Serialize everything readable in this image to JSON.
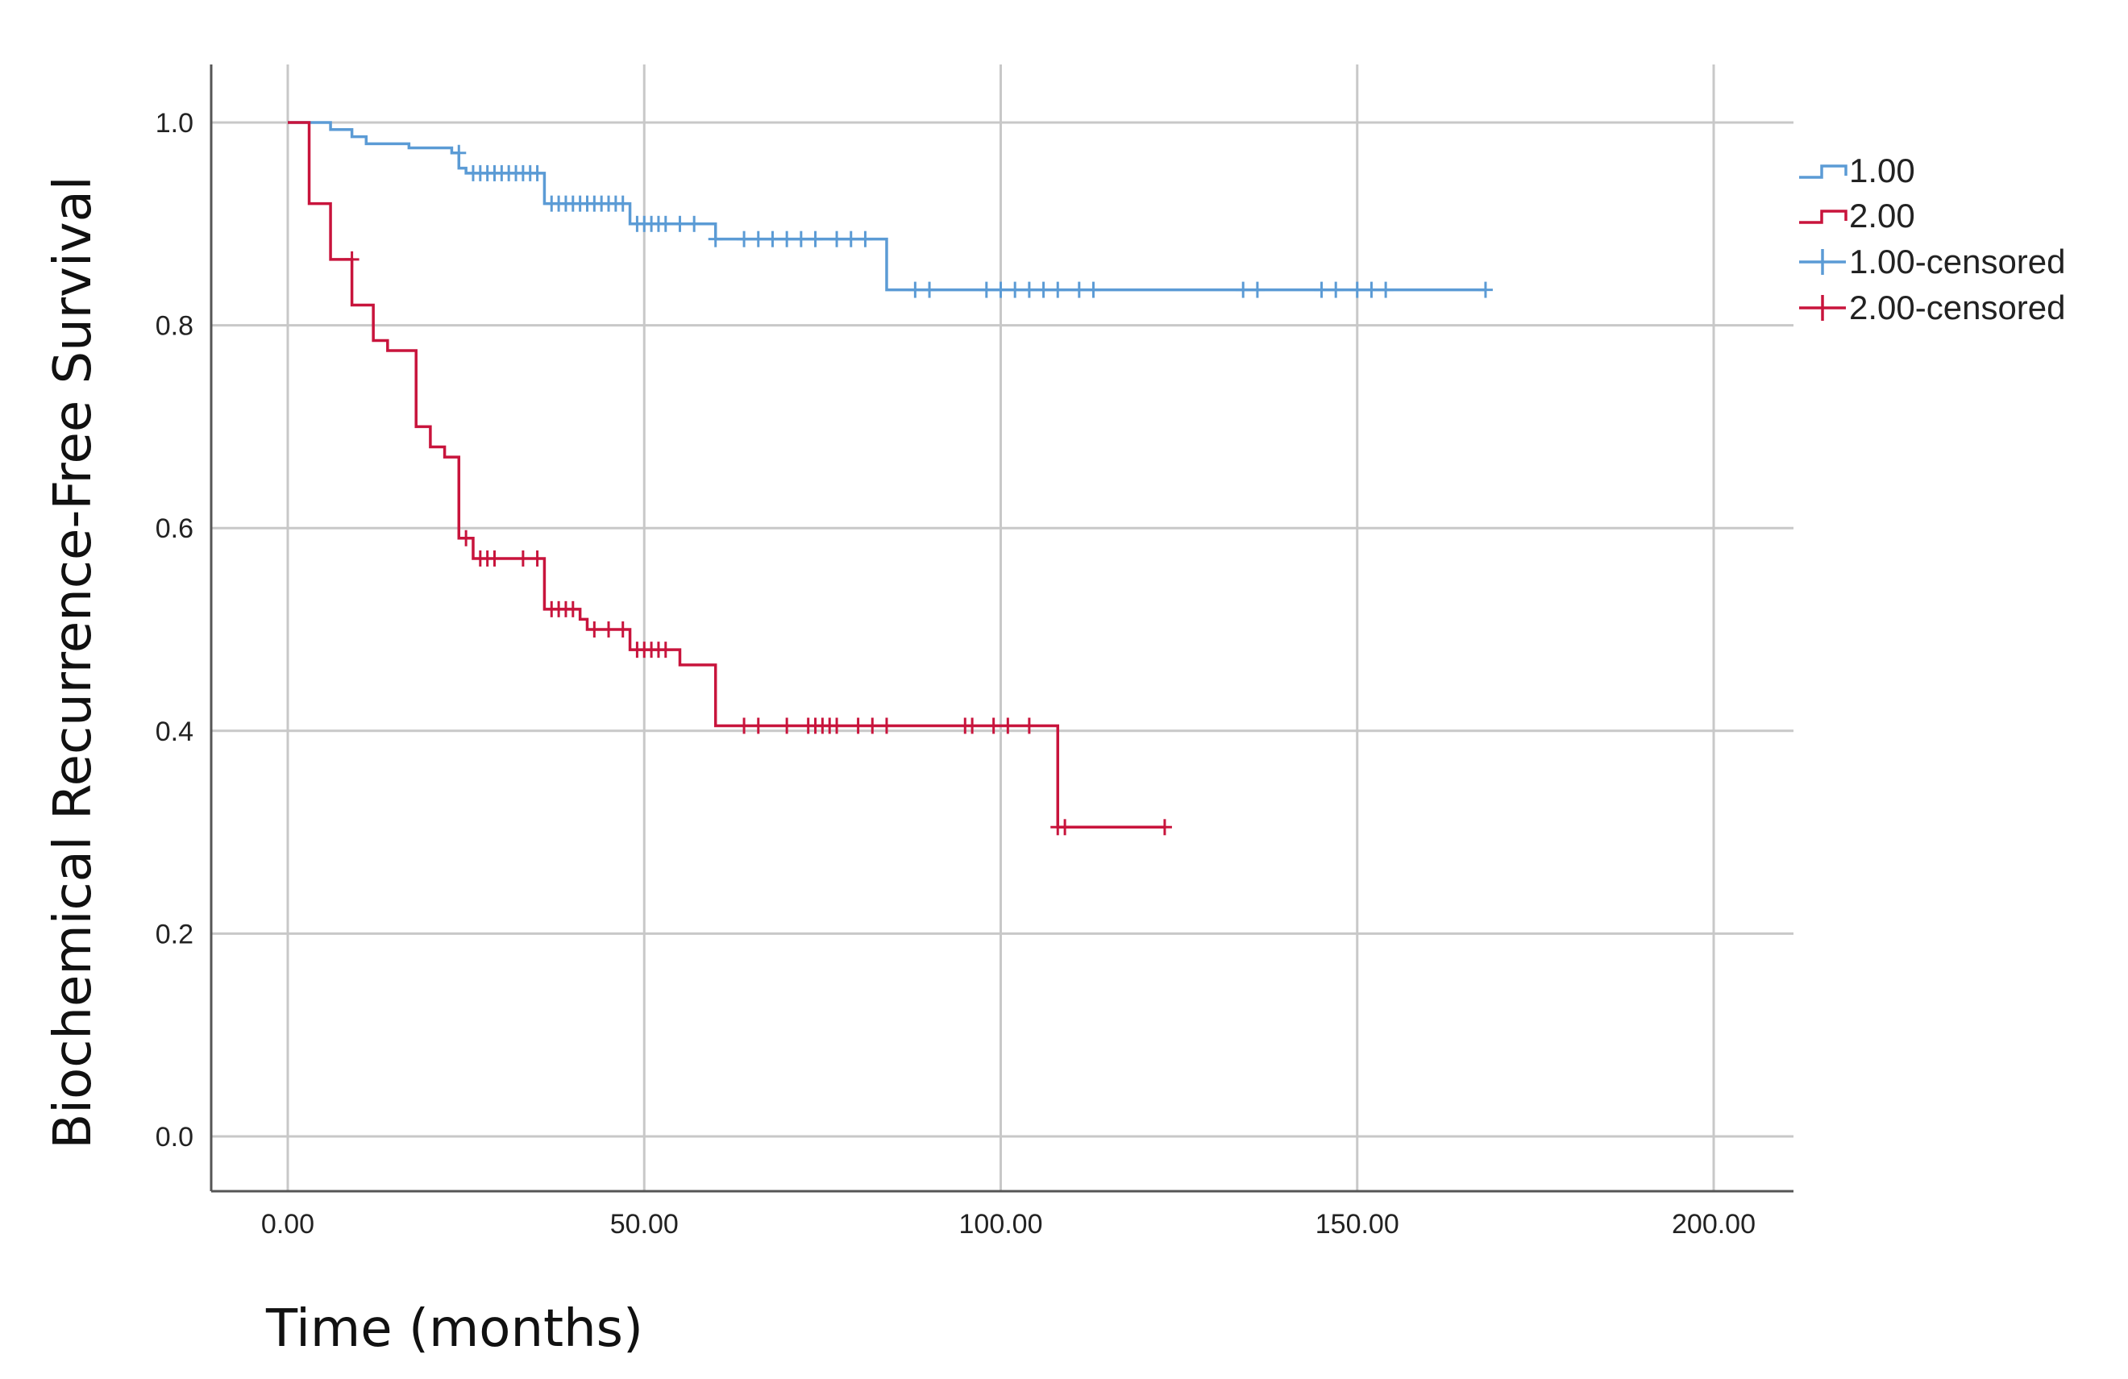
{
  "chart_data": {
    "type": "line",
    "subtype": "kaplan-meier step curve",
    "title": "",
    "xlabel": "Time (months)",
    "ylabel": "Biochemical Recurrence-Free Survival",
    "xlim": [
      0,
      200
    ],
    "ylim": [
      0,
      1.0
    ],
    "x_ticks": [
      {
        "value": 0,
        "label": "0.00"
      },
      {
        "value": 50,
        "label": "50.00"
      },
      {
        "value": 100,
        "label": "100.00"
      },
      {
        "value": 150,
        "label": "150.00"
      },
      {
        "value": 200,
        "label": "200.00"
      }
    ],
    "y_ticks": [
      {
        "value": 0,
        "label": "0.0"
      },
      {
        "value": 0.2,
        "label": "0.2"
      },
      {
        "value": 0.4,
        "label": "0.4"
      },
      {
        "value": 0.6,
        "label": "0.6"
      },
      {
        "value": 0.8,
        "label": "0.8"
      },
      {
        "value": 1.0,
        "label": "1.0"
      }
    ],
    "grid": true,
    "legend_position": "right",
    "legend": [
      {
        "label": "1.00",
        "kind": "step",
        "series": "1.00"
      },
      {
        "label": "2.00",
        "kind": "step",
        "series": "2.00"
      },
      {
        "label": "1.00-censored",
        "kind": "censor",
        "series": "1.00"
      },
      {
        "label": "2.00-censored",
        "kind": "censor",
        "series": "2.00"
      }
    ],
    "series": [
      {
        "name": "1.00",
        "color": "#5b9bd5",
        "steps": [
          [
            0,
            1.0
          ],
          [
            4,
            1.0
          ],
          [
            6,
            0.993
          ],
          [
            9,
            0.986
          ],
          [
            11,
            0.979
          ],
          [
            17,
            0.975
          ],
          [
            23,
            0.97
          ],
          [
            24,
            0.955
          ],
          [
            25,
            0.95
          ],
          [
            36,
            0.92
          ],
          [
            48,
            0.9
          ],
          [
            60,
            0.885
          ],
          [
            84,
            0.835
          ],
          [
            168,
            0.835
          ]
        ],
        "censored": [
          [
            24,
            0.97
          ],
          [
            26,
            0.95
          ],
          [
            27,
            0.95
          ],
          [
            28,
            0.95
          ],
          [
            29,
            0.95
          ],
          [
            30,
            0.95
          ],
          [
            31,
            0.95
          ],
          [
            32,
            0.95
          ],
          [
            33,
            0.95
          ],
          [
            34,
            0.95
          ],
          [
            35,
            0.95
          ],
          [
            37,
            0.92
          ],
          [
            38,
            0.92
          ],
          [
            39,
            0.92
          ],
          [
            40,
            0.92
          ],
          [
            41,
            0.92
          ],
          [
            42,
            0.92
          ],
          [
            43,
            0.92
          ],
          [
            44,
            0.92
          ],
          [
            45,
            0.92
          ],
          [
            46,
            0.92
          ],
          [
            47,
            0.92
          ],
          [
            49,
            0.9
          ],
          [
            50,
            0.9
          ],
          [
            51,
            0.9
          ],
          [
            52,
            0.9
          ],
          [
            53,
            0.9
          ],
          [
            55,
            0.9
          ],
          [
            57,
            0.9
          ],
          [
            60,
            0.885
          ],
          [
            64,
            0.885
          ],
          [
            66,
            0.885
          ],
          [
            68,
            0.885
          ],
          [
            70,
            0.885
          ],
          [
            72,
            0.885
          ],
          [
            74,
            0.885
          ],
          [
            77,
            0.885
          ],
          [
            79,
            0.885
          ],
          [
            81,
            0.885
          ],
          [
            88,
            0.835
          ],
          [
            90,
            0.835
          ],
          [
            98,
            0.835
          ],
          [
            100,
            0.835
          ],
          [
            102,
            0.835
          ],
          [
            104,
            0.835
          ],
          [
            106,
            0.835
          ],
          [
            108,
            0.835
          ],
          [
            111,
            0.835
          ],
          [
            113,
            0.835
          ],
          [
            134,
            0.835
          ],
          [
            136,
            0.835
          ],
          [
            145,
            0.835
          ],
          [
            147,
            0.835
          ],
          [
            150,
            0.835
          ],
          [
            152,
            0.835
          ],
          [
            154,
            0.835
          ],
          [
            168,
            0.835
          ]
        ]
      },
      {
        "name": "2.00",
        "color": "#c8143c",
        "steps": [
          [
            0,
            1.0
          ],
          [
            3,
            1.0
          ],
          [
            3,
            0.92
          ],
          [
            6,
            0.9
          ],
          [
            6,
            0.865
          ],
          [
            9,
            0.85
          ],
          [
            9,
            0.82
          ],
          [
            12,
            0.785
          ],
          [
            14,
            0.775
          ],
          [
            18,
            0.775
          ],
          [
            18,
            0.7
          ],
          [
            20,
            0.68
          ],
          [
            22,
            0.67
          ],
          [
            24,
            0.6
          ],
          [
            24,
            0.59
          ],
          [
            26,
            0.57
          ],
          [
            36,
            0.52
          ],
          [
            41,
            0.51
          ],
          [
            42,
            0.5
          ],
          [
            48,
            0.48
          ],
          [
            55,
            0.465
          ],
          [
            60,
            0.405
          ],
          [
            108,
            0.405
          ],
          [
            108,
            0.305
          ],
          [
            123,
            0.305
          ]
        ],
        "censored": [
          [
            9,
            0.865
          ],
          [
            25,
            0.59
          ],
          [
            27,
            0.57
          ],
          [
            28,
            0.57
          ],
          [
            29,
            0.57
          ],
          [
            33,
            0.57
          ],
          [
            35,
            0.57
          ],
          [
            37,
            0.52
          ],
          [
            38,
            0.52
          ],
          [
            39,
            0.52
          ],
          [
            40,
            0.52
          ],
          [
            43,
            0.5
          ],
          [
            45,
            0.5
          ],
          [
            47,
            0.5
          ],
          [
            49,
            0.48
          ],
          [
            50,
            0.48
          ],
          [
            51,
            0.48
          ],
          [
            52,
            0.48
          ],
          [
            53,
            0.48
          ],
          [
            64,
            0.405
          ],
          [
            66,
            0.405
          ],
          [
            70,
            0.405
          ],
          [
            73,
            0.405
          ],
          [
            74,
            0.405
          ],
          [
            75,
            0.405
          ],
          [
            76,
            0.405
          ],
          [
            77,
            0.405
          ],
          [
            80,
            0.405
          ],
          [
            82,
            0.405
          ],
          [
            84,
            0.405
          ],
          [
            95,
            0.405
          ],
          [
            96,
            0.405
          ],
          [
            99,
            0.405
          ],
          [
            101,
            0.405
          ],
          [
            104,
            0.405
          ],
          [
            108,
            0.305
          ],
          [
            109,
            0.305
          ],
          [
            123,
            0.305
          ]
        ]
      }
    ]
  }
}
